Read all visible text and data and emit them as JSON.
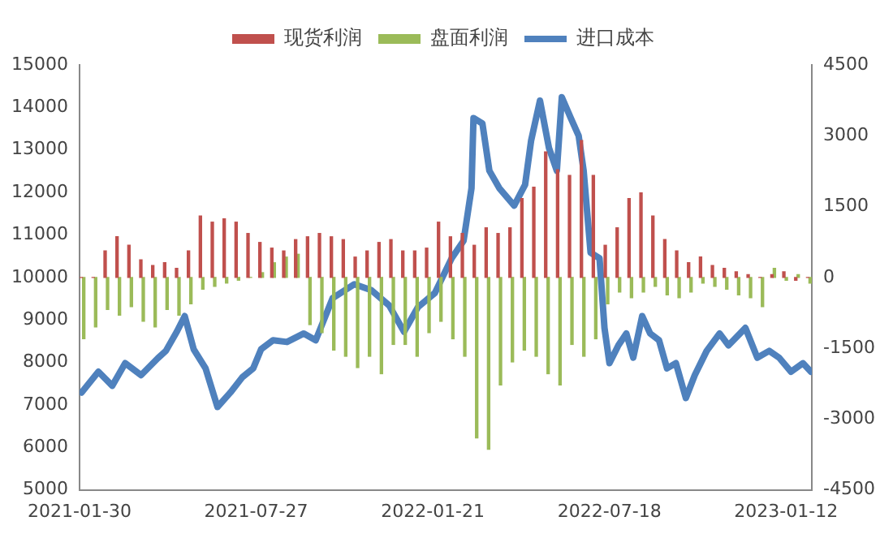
{
  "chart_data": {
    "type": "bar",
    "legend": "top",
    "grid": false,
    "xlim": [
      "2021-01-30",
      "2023-02-07"
    ],
    "xticks": [
      "2021-01-30",
      "2021-07-27",
      "2022-01-21",
      "2022-07-18",
      "2023-01-12"
    ],
    "ylim": [
      5000,
      15000
    ],
    "yticks": [
      5000,
      6000,
      7000,
      8000,
      9000,
      10000,
      11000,
      12000,
      13000,
      14000,
      15000
    ],
    "y2lim": [
      -4500,
      4500
    ],
    "y2ticks": [
      -4500,
      -3000,
      -1500,
      0,
      1500,
      3000,
      4500
    ],
    "x": [
      "2021-02-02",
      "2021-02-14",
      "2021-02-26",
      "2021-03-10",
      "2021-03-22",
      "2021-04-03",
      "2021-04-15",
      "2021-04-27",
      "2021-05-09",
      "2021-05-21",
      "2021-06-02",
      "2021-06-14",
      "2021-06-26",
      "2021-07-08",
      "2021-07-20",
      "2021-08-01",
      "2021-08-13",
      "2021-08-25",
      "2021-09-06",
      "2021-09-18",
      "2021-09-30",
      "2021-10-12",
      "2021-10-24",
      "2021-11-05",
      "2021-11-17",
      "2021-11-29",
      "2021-12-11",
      "2021-12-23",
      "2022-01-04",
      "2022-01-16",
      "2022-01-28",
      "2022-02-09",
      "2022-02-21",
      "2022-03-05",
      "2022-03-17",
      "2022-03-29",
      "2022-04-10",
      "2022-04-22",
      "2022-05-04",
      "2022-05-16",
      "2022-05-28",
      "2022-06-09",
      "2022-06-21",
      "2022-07-03",
      "2022-07-15",
      "2022-07-27",
      "2022-08-08",
      "2022-08-20",
      "2022-09-01",
      "2022-09-13",
      "2022-09-25",
      "2022-10-07",
      "2022-10-19",
      "2022-10-31",
      "2022-11-12",
      "2022-11-24",
      "2022-12-06",
      "2022-12-18",
      "2022-12-30",
      "2023-01-11",
      "2023-01-23",
      "2023-02-04"
    ],
    "series": [
      {
        "name": "现货利润",
        "axis": "y2",
        "color": "#c0504d",
        "values": [
          0,
          0,
          560,
          860,
          680,
          370,
          250,
          310,
          190,
          560,
          1300,
          1170,
          1240,
          1170,
          930,
          740,
          620,
          560,
          800,
          860,
          930,
          860,
          800,
          430,
          560,
          740,
          800,
          560,
          560,
          620,
          1170,
          860,
          930,
          680,
          1050,
          930,
          1050,
          1670,
          1910,
          2660,
          2280,
          2160,
          2900,
          2160,
          680,
          1050,
          1670,
          1790,
          1300,
          800,
          560,
          310,
          430,
          250,
          190,
          120,
          60,
          0,
          60,
          120,
          -60,
          0
        ]
      },
      {
        "name": "盘面利润",
        "axis": "y2",
        "color": "#9bbb59",
        "values": [
          -1300,
          -1050,
          -680,
          -800,
          -620,
          -930,
          -1050,
          -680,
          -800,
          -560,
          -250,
          -190,
          -120,
          -60,
          0,
          100,
          310,
          430,
          490,
          -1000,
          -1170,
          -1540,
          -1670,
          -1910,
          -1670,
          -2040,
          -1420,
          -1420,
          -1670,
          -1170,
          -930,
          -1300,
          -1670,
          -3400,
          -3640,
          -2280,
          -1790,
          -1540,
          -1670,
          -2040,
          -2280,
          -1420,
          -1670,
          -1300,
          -560,
          -310,
          -430,
          -310,
          -190,
          -370,
          -430,
          -310,
          -120,
          -190,
          -250,
          -370,
          -430,
          -620,
          190,
          -60,
          60,
          -120
        ]
      },
      {
        "name": "进口成本",
        "type": "line",
        "axis": "y",
        "color": "#4f81bd",
        "marker": "none",
        "line_style": "solid",
        "x": [
          "2021-02-01",
          "2021-02-18",
          "2021-03-04",
          "2021-03-17",
          "2021-04-02",
          "2021-04-19",
          "2021-04-27",
          "2021-05-08",
          "2021-05-16",
          "2021-05-25",
          "2021-06-06",
          "2021-06-18",
          "2021-07-01",
          "2021-07-13",
          "2021-07-24",
          "2021-08-01",
          "2021-08-13",
          "2021-08-27",
          "2021-09-13",
          "2021-09-25",
          "2021-10-12",
          "2021-11-03",
          "2021-11-20",
          "2021-12-08",
          "2021-12-23",
          "2022-01-06",
          "2022-01-23",
          "2022-02-09",
          "2022-02-21",
          "2022-03-01",
          "2022-03-03",
          "2022-03-12",
          "2022-03-19",
          "2022-03-29",
          "2022-04-13",
          "2022-04-24",
          "2022-04-30",
          "2022-05-09",
          "2022-05-18",
          "2022-05-26",
          "2022-05-31",
          "2022-06-09",
          "2022-06-17",
          "2022-06-22",
          "2022-06-29",
          "2022-07-08",
          "2022-07-13",
          "2022-07-18",
          "2022-07-27",
          "2022-08-04",
          "2022-08-11",
          "2022-08-20",
          "2022-08-28",
          "2022-09-06",
          "2022-09-14",
          "2022-09-23",
          "2022-10-03",
          "2022-10-12",
          "2022-10-24",
          "2022-11-06",
          "2022-11-15",
          "2022-12-02",
          "2022-12-14",
          "2022-12-26",
          "2023-01-05",
          "2023-01-17",
          "2023-01-29",
          "2023-02-06"
        ],
        "values": [
          7290,
          7780,
          7450,
          7980,
          7700,
          8100,
          8270,
          8720,
          9090,
          8310,
          7860,
          6950,
          7290,
          7650,
          7860,
          8310,
          8520,
          8480,
          8680,
          8520,
          9510,
          9840,
          9700,
          9340,
          8720,
          9300,
          9630,
          10450,
          10860,
          12100,
          13750,
          13620,
          12510,
          12100,
          11690,
          12180,
          13210,
          14160,
          13050,
          12510,
          14240,
          13750,
          13330,
          12510,
          10580,
          10450,
          8810,
          7980,
          8400,
          8680,
          8110,
          9090,
          8680,
          8520,
          7860,
          7980,
          7160,
          7700,
          8270,
          8680,
          8400,
          8810,
          8110,
          8270,
          8110,
          7780,
          7980,
          7780
        ]
      }
    ]
  }
}
